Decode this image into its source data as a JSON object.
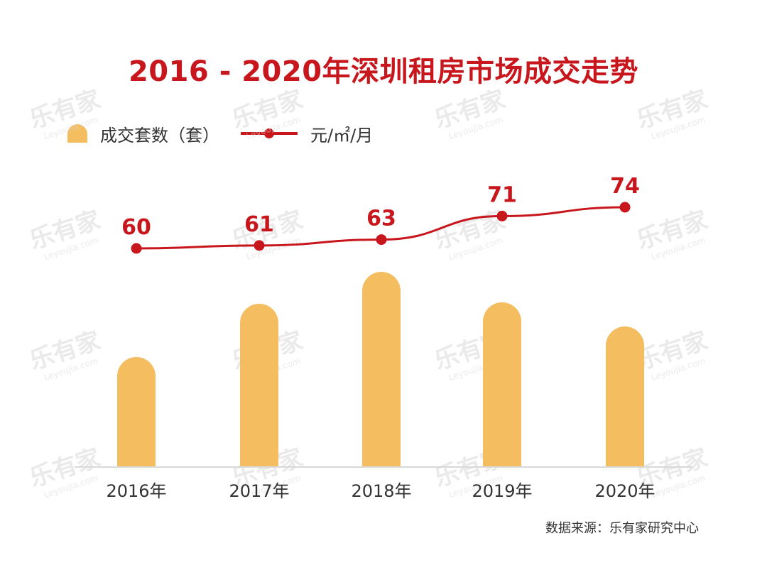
{
  "title": "2016 - 2020年深圳租房市场成交走势",
  "legend": {
    "bar_label": "成交套数（套）",
    "line_label": "元/㎡/月"
  },
  "source": "数据来源：乐有家研究中心",
  "watermark": {
    "brand": "乐有家",
    "domain": "Leyoujia.com"
  },
  "colors": {
    "title": "#c8161d",
    "bar": "#f4bd5f",
    "line": "#c8161d",
    "axis": "#d9d9d9",
    "tick_text": "#333333",
    "watermark": "#d8d8d8"
  },
  "chart_data": {
    "type": "bar",
    "categories": [
      "2016年",
      "2017年",
      "2018年",
      "2019年",
      "2020年"
    ],
    "series": [
      {
        "name": "成交套数（套）",
        "type": "bar",
        "values": [
          155,
          230,
          275,
          232,
          198
        ]
      },
      {
        "name": "元/㎡/月",
        "type": "line",
        "values": [
          60,
          61,
          63,
          71,
          74
        ],
        "data_labels": [
          "60",
          "61",
          "63",
          "71",
          "74"
        ]
      }
    ],
    "title": "2016 - 2020年深圳租房市场成交走势",
    "xlabel": "",
    "ylabel": "",
    "grid": false,
    "legend_position": "top-left"
  }
}
